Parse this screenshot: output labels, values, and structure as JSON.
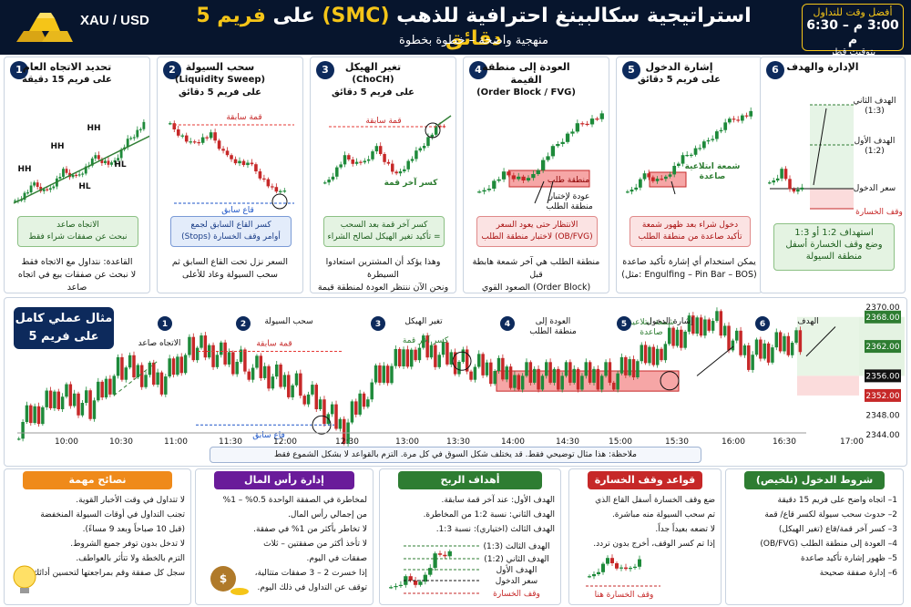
{
  "header": {
    "symbol": "XAU / USD",
    "title_a": "استراتيجية سكالبينغ احترافية للذهب ",
    "title_smc": "(SMC)",
    "title_b": " على ",
    "title_c": "فريم 5 دقائق",
    "subtitle": "منهجية واضحة – خطوة بخطوة",
    "time_label": "أفضل وقت للتداول",
    "time_value": "3:00 م – 6:30 م",
    "time_zone": "بتوقيت قطر"
  },
  "steps": [
    {
      "num": "1",
      "title": "تحديد الاتجاه العام",
      "subtitle": "على فريم 15 دقيقة",
      "box": "الاتجاه صاعد\nنبحث عن صفقات شراء فقط",
      "foot": "القاعدة: نتداول مع الاتجاه فقط\nلا نبحث عن صفقات بيع في اتجاه صاعد",
      "labels": [
        "HH",
        "HH",
        "HH",
        "HL",
        "HL"
      ]
    },
    {
      "num": "2",
      "title": "سحب السيولة",
      "subtitle": "(Liquidity Sweep)",
      "subtitle2": "على فريم 5 دقائق",
      "box": "كسر القاع السابق لجمع\nأوامر وقف الخسارة (Stops)",
      "foot": "السعر نزل تحت القاع السابق ثم\nسحب السيولة وعاد للأعلى",
      "high": "قمة سابقة",
      "low": "قاع سابق"
    },
    {
      "num": "3",
      "title": "تغير الهيكل",
      "subtitle": "(ChoCH)",
      "subtitle2": "على فريم 5 دقائق",
      "box": "كسر آخر قمة بعد السحب\n= تأكيد تغير الهيكل لصالح الشراء",
      "foot": "وهذا يؤكد أن المشترين استعادوا السيطرة\nونحن الآن ننتظر العودة لمنطقة قيمة",
      "high": "قمة سابقة",
      "brk": "كسر آخر قمة"
    },
    {
      "num": "4",
      "title": "العودة إلى منطقة القيمة",
      "subtitle": "(Order Block / FVG)",
      "box": "الانتظار حتى يعود السعر\n(OB/FVG) لاختبار منطقة الطلب",
      "foot": "منطقة الطلب هي آخر شمعة هابطة قبل\n(Order Block) الصعود القوي",
      "zone": "منطقة طلب",
      "retest": "عودة لإختبار\nمنطقة الطلب"
    },
    {
      "num": "5",
      "title": "إشارة الدخول",
      "subtitle": "على فريم 5 دقائق",
      "box": "دخول شراء بعد ظهور شمعة\nتأكيد صاعدة من منطقة الطلب",
      "foot": "يمكن استخدام أي إشارة تأكيد صاعدة\n(Engulfing – Pin Bar – BOS :مثل)",
      "candle": "شمعة ابتلاعية\nصاعدة"
    },
    {
      "num": "6",
      "title": "الإدارة والهدف",
      "box": "استهداف 1:2 أو 1:3\nوضع وقف الخسارة أسفل\nمنطقة السيولة",
      "t2": "الهدف الثاني\n(1:3)",
      "t1": "الهدف الأول\n(1:2)",
      "entry": "سعر الدخول",
      "sl": "وقف الخسارة"
    }
  ],
  "example": {
    "label": "مثال عملي كامل\nعلى فريم 5 دقائق",
    "steps": [
      "الاتجاه صاعد",
      "سحب السيولة",
      "تغير الهيكل",
      "العودة إلى\nمنطقة الطلب",
      "إشارة الدخول",
      "الهدف"
    ],
    "high": "قمة سابقة",
    "low": "قاع سابق",
    "brk": "كسر آخر قمة",
    "candle": "شمعة ابتلاعية\nصاعدة",
    "times": [
      "10:00",
      "10:30",
      "11:00",
      "11:30",
      "12:00",
      "12:30",
      "13:00",
      "13:30",
      "14:00",
      "14:30",
      "15:00",
      "15:30",
      "16:00",
      "16:30",
      "17:00"
    ],
    "prices": [
      "2370.00",
      "2368.00",
      "2362.00",
      "2356.00",
      "2352.00",
      "2348.00",
      "2344.00"
    ],
    "note": "ملاحظة: هذا مثال توضيحي فقط. قد يختلف شكل السوق في كل مرة. التزم بالقواعد لا بشكل الشموع فقط"
  },
  "bottom": [
    {
      "head": "شروط الدخول (تلخيص)",
      "color": "#2e7d32",
      "items": [
        "1– اتجاه واضح على فريم 15 دقيقة",
        "2– حدوث سحب سيولة لكسر قاع/ قمة",
        "3– كسر آخر قمة/قاع (تغير الهيكل)",
        "4– العودة إلى منطقة الطلب (OB/FVG)",
        "5– ظهور إشارة تأكيد صاعدة",
        "6– إدارة صفقة صحيحة"
      ]
    },
    {
      "head": "قواعد وقف الخسارة",
      "color": "#c62828",
      "items": [
        "ضع وقف الخسارة أسفل القاع الذي",
        "تم سحب السيولة منه مباشرة.",
        "لا تضعه بعيداً جداً.",
        "إذا تم كسر الوقف، أخرج بدون تردد."
      ],
      "sl": "وقف الخسارة هنا"
    },
    {
      "head": "أهداف الربح",
      "color": "#2e7d32",
      "items": [
        "الهدف الأول: عند آخر قمة سابقة.",
        "الهدف الثاني: نسبة 1:2 من المخاطرة.",
        "الهدف الثالث (اختياري): نسبة 1:3."
      ],
      "t3": "الهدف الثالث (1:3)",
      "t2": "الهدف الثاني (1:2)",
      "t1": "الهدف الأول",
      "entry": "سعر الدخول",
      "sl": "وقف الخسارة"
    },
    {
      "head": "إدارة رأس المال",
      "color": "#6a1b9a",
      "items": [
        "لمخاطرة في الصفقة الواحدة 0.5% – 1%",
        "من إجمالي رأس المال.",
        "لا تخاطر بأكثر من 1% في صفقة.",
        "لا تأخذ أكثر من صفقتين – ثلاث",
        "صفقات في اليوم.",
        "إذا خسرت 2 – 3 صفقات متتالية،",
        "توقف عن التداول في ذلك اليوم."
      ]
    },
    {
      "head": "نصائح مهمة",
      "color": "#ef8a1a",
      "items": [
        "لا تتداول في وقت الأخبار القوية.",
        "تجنب التداول في أوقات السيولة المنخفضة",
        "(قبل 10 صباحاً وبعد 9 مساءً).",
        "لا تدخل بدون توفر جميع الشروط.",
        "التزم بالخطة ولا تتأثر بالعواطف.",
        "سجل كل صفقة وقم بمراجعتها لتحسين أدائك."
      ]
    }
  ]
}
